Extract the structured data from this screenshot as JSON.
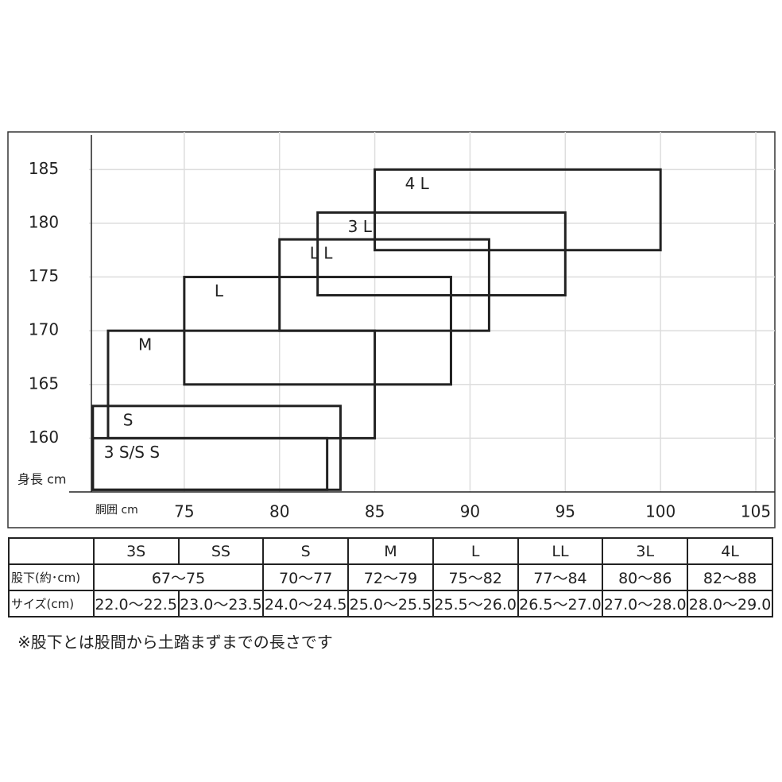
{
  "chart_data": {
    "type": "rect",
    "xlabel": "胴囲 cm",
    "ylabel": "身長 cm",
    "xlim": [
      70,
      106
    ],
    "ylim": [
      155,
      188.5
    ],
    "xticks": [
      75,
      80,
      85,
      90,
      95,
      100,
      105
    ],
    "yticks": [
      160,
      165,
      170,
      175,
      180,
      185
    ],
    "grid": true,
    "color": "#222",
    "boxes": [
      {
        "label": "4 L",
        "x": [
          85,
          100
        ],
        "y": [
          177.5,
          185
        ]
      },
      {
        "label": "3 L",
        "x": [
          82,
          95
        ],
        "y": [
          173.3,
          181
        ]
      },
      {
        "label": "L L",
        "x": [
          80,
          91
        ],
        "y": [
          170,
          178.5
        ]
      },
      {
        "label": "L",
        "x": [
          75,
          89
        ],
        "y": [
          165,
          175
        ]
      },
      {
        "label": "M",
        "x": [
          71,
          85
        ],
        "y": [
          160,
          170
        ]
      },
      {
        "label": "S",
        "x": [
          70.2,
          83.2
        ],
        "y": [
          155.2,
          163
        ]
      },
      {
        "label": "3 S/S S",
        "x": [
          70.2,
          82.5
        ],
        "y": [
          155.2,
          160
        ]
      }
    ]
  },
  "table": {
    "rows": [
      [
        "3S",
        "SS",
        "S",
        "M",
        "L",
        "LL",
        "3L",
        "4L"
      ],
      [
        "股下(約･cm)",
        "67〜75",
        "70〜77",
        "72〜79",
        "75〜82",
        "77〜84",
        "80〜86",
        "82〜88"
      ],
      [
        "サイズ(cm)",
        "22.0〜22.5",
        "23.0〜23.5",
        "24.0〜24.5",
        "25.0〜25.5",
        "25.5〜26.0",
        "26.5〜27.0",
        "27.0〜28.0",
        "28.0〜29.0"
      ]
    ]
  },
  "note": "※股下とは股間から土踏まずまでの長さです"
}
